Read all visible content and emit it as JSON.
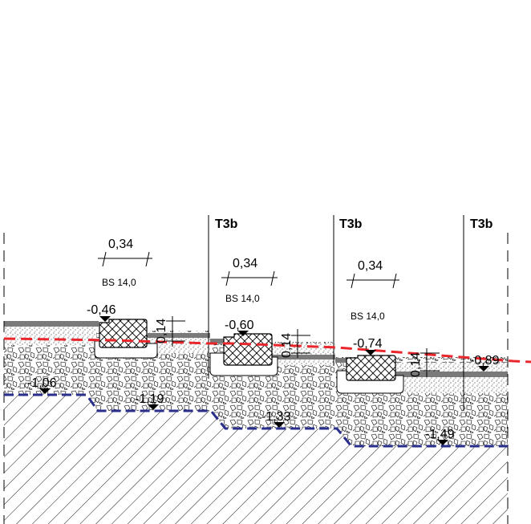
{
  "sections": [
    {
      "tag": "",
      "dimension": "0,34",
      "material": "BS 14,0",
      "level": "-0,46",
      "height_dim": "0,14",
      "subgrade_level": "-1,06"
    },
    {
      "tag": "T3b",
      "dimension": "0,34",
      "material": "BS 14,0",
      "level": "-0,60",
      "height_dim": "0,14",
      "subgrade_level": "-1,19"
    },
    {
      "tag": "T3b",
      "dimension": "0,34",
      "material": "BS 14,0",
      "level": "-0,74",
      "height_dim": "0,14",
      "subgrade_level": "-1,33"
    },
    {
      "tag": "T3b",
      "level": "-0,89",
      "subgrade_level": "-1,49"
    }
  ],
  "colors": {
    "red_line": "#e8262b",
    "blue_line": "#2a2f8c",
    "asphalt": "#7a7a7a",
    "ink": "#000000"
  }
}
